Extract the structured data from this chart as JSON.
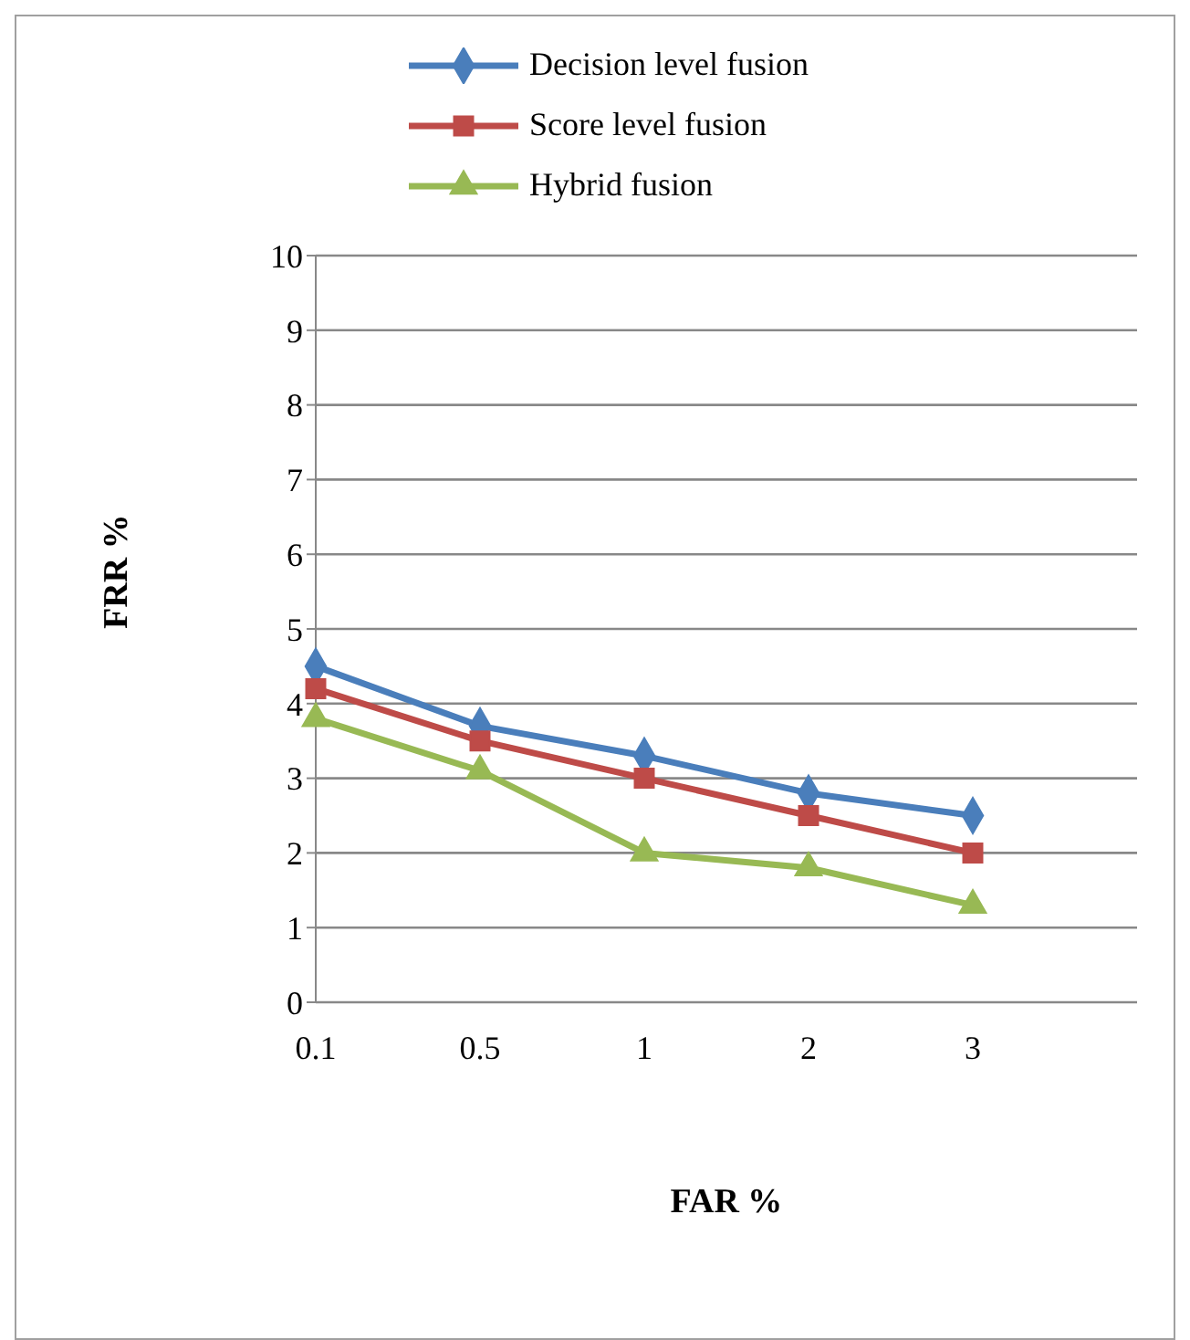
{
  "chart_data": {
    "type": "line",
    "xlabel": "FAR %",
    "ylabel": "FRR %",
    "categories": [
      "0.1",
      "0.5",
      "1",
      "2",
      "3",
      null
    ],
    "series": [
      {
        "name": "Decision  level fusion",
        "color": "#4a7ebb",
        "marker": "diamond",
        "values": [
          4.5,
          3.7,
          3.3,
          2.8,
          2.5,
          null
        ]
      },
      {
        "name": "Score level fusion",
        "color": "#be4b48",
        "marker": "square",
        "values": [
          4.2,
          3.5,
          3.0,
          2.5,
          2.0,
          null
        ]
      },
      {
        "name": "Hybrid fusion",
        "color": "#98b954",
        "marker": "triangle",
        "values": [
          3.8,
          3.1,
          2.0,
          1.8,
          1.3,
          null
        ]
      }
    ],
    "ylim": [
      0,
      10
    ],
    "yticks": [
      0,
      1,
      2,
      3,
      4,
      5,
      6,
      7,
      8,
      9,
      10
    ],
    "grid": "y",
    "legend": "top",
    "line_style": "solid"
  }
}
